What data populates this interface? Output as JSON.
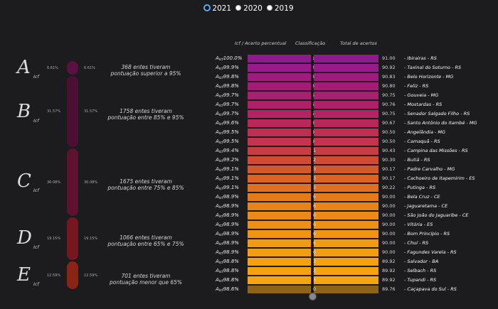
{
  "years": [
    {
      "label": "2021",
      "selected": true
    },
    {
      "label": "2020",
      "selected": false
    },
    {
      "label": "2019",
      "selected": false
    }
  ],
  "headers": {
    "icf": "Icf / Acerto percentual",
    "classificacao": "Classificação",
    "total": "Total de acertos"
  },
  "tiers": [
    {
      "letter": "A",
      "sub": "Icf",
      "pct": "6.61%",
      "text_line1": "368 entes tiveram",
      "text_line2": "pontuação superior a 95%",
      "color": "#5a1040",
      "share": 6.61
    },
    {
      "letter": "B",
      "sub": "Icf",
      "pct": "31.57%",
      "text_line1": "1758 entes tiveram",
      "text_line2": "pontuação entre 85% e 95%",
      "color": "#4c0f34",
      "share": 31.57
    },
    {
      "letter": "C",
      "sub": "Icf",
      "pct": "30.08%",
      "text_line1": "1675 entes tiveram",
      "text_line2": "pontuação entre 75% e 85%",
      "color": "#5e1230",
      "share": 30.08
    },
    {
      "letter": "D",
      "sub": "Icf",
      "pct": "19.15%",
      "text_line1": "1066 entes tiveram",
      "text_line2": "pontuação entre 65% e 75%",
      "color": "#76171f",
      "share": 19.15
    },
    {
      "letter": "E",
      "sub": "Icf",
      "pct": "12.59%",
      "text_line1": "701 entes tiveram",
      "text_line2": "pontuação menor que 65%",
      "color": "#8a2416",
      "share": 12.59
    }
  ],
  "chart_data": {
    "type": "bar",
    "rows": [
      {
        "icf": "100.0%",
        "rank": "1",
        "total": "91.00",
        "name": "Ibirairas - RS",
        "color": "#8e1a8e"
      },
      {
        "icf": "99.9%",
        "rank": "2",
        "total": "90.92",
        "name": "Taxinal do Soturno - RS",
        "color": "#991a88"
      },
      {
        "icf": "99.8%",
        "rank": "3",
        "total": "90.83",
        "name": "Belo Horizonte - MG",
        "color": "#a01a80"
      },
      {
        "icf": "99.8%",
        "rank": "3",
        "total": "90.80",
        "name": "Feliz - RS",
        "color": "#a51c78"
      },
      {
        "icf": "99.7%",
        "rank": "5",
        "total": "90.75",
        "name": "Gouveia - MG",
        "color": "#ab1e70"
      },
      {
        "icf": "99.7%",
        "rank": "5",
        "total": "90.76",
        "name": "Mostardas - RS",
        "color": "#b02068"
      },
      {
        "icf": "99.7%",
        "rank": "5",
        "total": "90.75",
        "name": "Senador Salgado Filho - RS",
        "color": "#b52462"
      },
      {
        "icf": "99.6%",
        "rank": "8",
        "total": "90.67",
        "name": "Santo Antônio do Itambé - MG",
        "color": "#ba285a"
      },
      {
        "icf": "99.5%",
        "rank": "9",
        "total": "90.50",
        "name": "Angelândia - MG",
        "color": "#c02e52"
      },
      {
        "icf": "99.5%",
        "rank": "9",
        "total": "90.50",
        "name": "Camaquã - RS",
        "color": "#c5344a"
      },
      {
        "icf": "99.4%",
        "rank": "11",
        "total": "90.43",
        "name": "Campina das Missões - RS",
        "color": "#ca3c42"
      },
      {
        "icf": "99.2%",
        "rank": "12",
        "total": "90.30",
        "name": "Butiá - RS",
        "color": "#d04a34"
      },
      {
        "icf": "99.1%",
        "rank": "13",
        "total": "90.17",
        "name": "Padre Carvalho - MG",
        "color": "#d6582a"
      },
      {
        "icf": "99.1%",
        "rank": "13",
        "total": "90.17",
        "name": "Cachoeiro de Itapemirim - ES",
        "color": "#db6424"
      },
      {
        "icf": "99.1%",
        "rank": "13",
        "total": "90.22",
        "name": "Putinga - RS",
        "color": "#e0701e"
      },
      {
        "icf": "98.9%",
        "rank": "16",
        "total": "90.00",
        "name": "Bela Cruz - CE",
        "color": "#e47a1a"
      },
      {
        "icf": "98.9%",
        "rank": "16",
        "total": "90.00",
        "name": "Jaguaretama - CE",
        "color": "#e88318"
      },
      {
        "icf": "98.9%",
        "rank": "16",
        "total": "90.00",
        "name": "São João do Jaguaribe - CE",
        "color": "#eb8a16"
      },
      {
        "icf": "98.9%",
        "rank": "16",
        "total": "90.00",
        "name": "Vitória - ES",
        "color": "#ee9014"
      },
      {
        "icf": "98.9%",
        "rank": "16",
        "total": "90.00",
        "name": "Bom Princípio - RS",
        "color": "#f09512"
      },
      {
        "icf": "98.9%",
        "rank": "16",
        "total": "90.00",
        "name": "Chuí - RS",
        "color": "#f29a10"
      },
      {
        "icf": "98.9%",
        "rank": "16",
        "total": "90.00",
        "name": "Fagundes Varela - RS",
        "color": "#f39d10"
      },
      {
        "icf": "98.8%",
        "rank": "23",
        "total": "89.92",
        "name": "Salvador - BA",
        "color": "#f4a010"
      },
      {
        "icf": "98.8%",
        "rank": "23",
        "total": "89.92",
        "name": "Selbach - RS",
        "color": "#f5a210"
      },
      {
        "icf": "98.8%",
        "rank": "23",
        "total": "89.92",
        "name": "Tupandi - RS",
        "color": "#f6a410"
      },
      {
        "icf": "98.6%",
        "rank": "30",
        "total": "89.76",
        "name": "Caçapava do Sul - RS",
        "color": "#8a6418"
      }
    ]
  }
}
